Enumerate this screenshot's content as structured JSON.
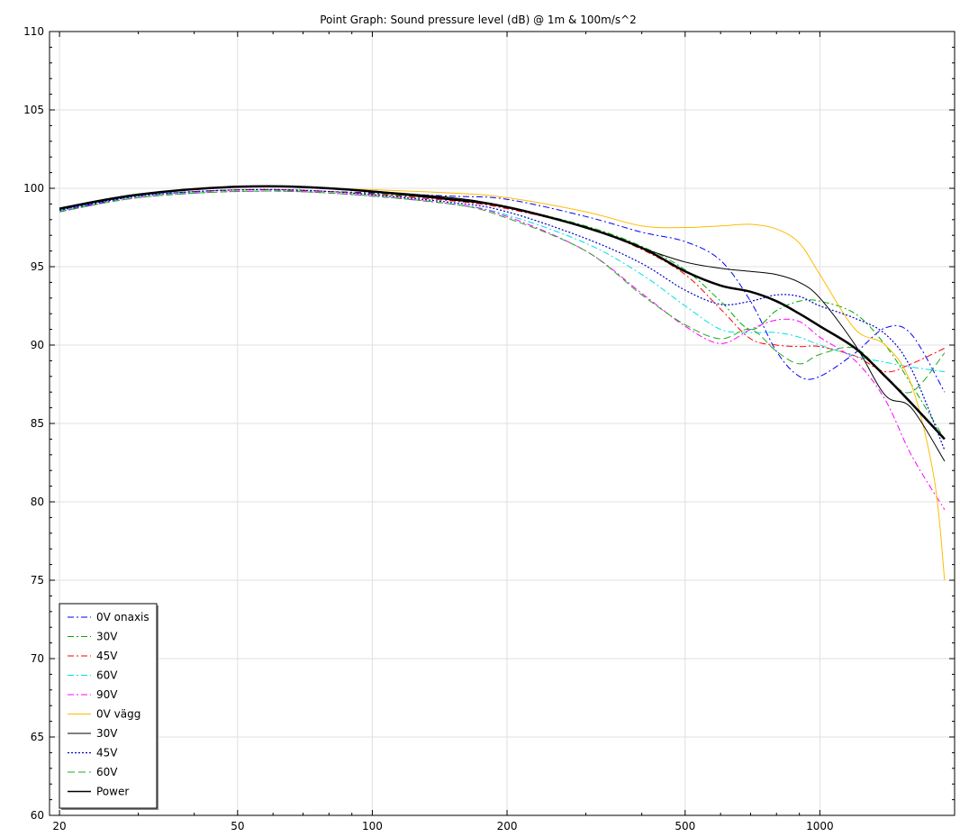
{
  "chart_data": {
    "type": "line",
    "title": "Point Graph: Sound pressure level (dB) @ 1m & 100m/s^2",
    "xlabel": "",
    "ylabel": "",
    "x_scale": "log",
    "xlim": [
      19,
      2000
    ],
    "ylim": [
      60,
      110
    ],
    "grid": true,
    "legend_position": "bottom-left",
    "x_ticks": [
      {
        "value": 20,
        "label": "20"
      },
      {
        "value": 50,
        "label": "50"
      },
      {
        "value": 100,
        "label": "100"
      },
      {
        "value": 200,
        "label": "200"
      },
      {
        "value": 500,
        "label": "500"
      },
      {
        "value": 1000,
        "label": "1000"
      }
    ],
    "y_ticks": [
      {
        "value": 60,
        "label": "60"
      },
      {
        "value": 65,
        "label": "65"
      },
      {
        "value": 70,
        "label": "70"
      },
      {
        "value": 75,
        "label": "75"
      },
      {
        "value": 80,
        "label": "80"
      },
      {
        "value": 85,
        "label": "85"
      },
      {
        "value": 90,
        "label": "90"
      },
      {
        "value": 95,
        "label": "95"
      },
      {
        "value": 100,
        "label": "100"
      },
      {
        "value": 105,
        "label": "105"
      },
      {
        "value": 110,
        "label": "110"
      }
    ],
    "series": [
      {
        "name": "0V onaxis",
        "color": "#0000ff",
        "dash": "dashdot",
        "width": 1,
        "x": [
          20,
          30,
          50,
          80,
          150,
          200,
          300,
          400,
          500,
          600,
          700,
          800,
          900,
          1000,
          1200,
          1400,
          1600,
          1900
        ],
        "y": [
          98.5,
          99.5,
          99.9,
          99.8,
          99.5,
          99.3,
          98.2,
          97.2,
          96.6,
          95.4,
          92.8,
          89.6,
          88.0,
          88.0,
          89.5,
          91.1,
          90.7,
          87.0
        ]
      },
      {
        "name": "30V",
        "color": "#00aa00",
        "dash": "dashdot",
        "width": 1,
        "x": [
          20,
          30,
          50,
          80,
          150,
          200,
          300,
          400,
          500,
          600,
          700,
          800,
          900,
          1000,
          1200,
          1400,
          1600,
          1900
        ],
        "y": [
          98.6,
          99.5,
          99.9,
          99.8,
          99.3,
          98.8,
          97.6,
          96.3,
          94.8,
          92.8,
          91.0,
          92.2,
          92.8,
          92.8,
          92.0,
          90.0,
          87.5,
          84.0
        ]
      },
      {
        "name": "45V",
        "color": "#ff0000",
        "dash": "dashdot",
        "width": 1,
        "x": [
          20,
          30,
          50,
          80,
          150,
          200,
          300,
          400,
          500,
          600,
          700,
          800,
          900,
          1000,
          1200,
          1400,
          1600,
          1900
        ],
        "y": [
          98.6,
          99.5,
          99.9,
          99.8,
          99.2,
          98.7,
          97.5,
          96.1,
          94.5,
          92.3,
          90.4,
          90.0,
          89.9,
          89.9,
          89.3,
          88.3,
          88.8,
          89.8
        ]
      },
      {
        "name": "60V",
        "color": "#00e0e0",
        "dash": "dashdot",
        "width": 1,
        "x": [
          20,
          30,
          50,
          80,
          150,
          200,
          300,
          400,
          500,
          600,
          700,
          800,
          900,
          1000,
          1200,
          1400,
          1600,
          1900
        ],
        "y": [
          98.6,
          99.5,
          99.8,
          99.7,
          99.0,
          98.3,
          96.5,
          94.5,
          92.5,
          91.0,
          90.8,
          90.8,
          90.5,
          90.0,
          89.3,
          88.9,
          88.6,
          88.3
        ]
      },
      {
        "name": "90V",
        "color": "#ff00ff",
        "dash": "dashdot",
        "width": 1,
        "x": [
          20,
          30,
          50,
          80,
          150,
          200,
          300,
          400,
          500,
          600,
          700,
          800,
          900,
          1000,
          1200,
          1400,
          1600,
          1900
        ],
        "y": [
          98.5,
          99.4,
          99.8,
          99.7,
          99.0,
          98.2,
          96.0,
          93.3,
          91.2,
          90.1,
          91.0,
          91.6,
          91.5,
          90.5,
          89.0,
          86.5,
          83.0,
          79.5
        ]
      },
      {
        "name": "0V vägg",
        "color": "#ffbb00",
        "dash": "solid",
        "width": 1,
        "x": [
          20,
          30,
          50,
          80,
          150,
          200,
          300,
          400,
          500,
          600,
          700,
          800,
          900,
          1000,
          1200,
          1400,
          1600,
          1800,
          1900
        ],
        "y": [
          98.7,
          99.6,
          100.1,
          100.0,
          99.7,
          99.4,
          98.5,
          97.6,
          97.5,
          97.6,
          97.7,
          97.4,
          96.5,
          94.5,
          91.0,
          90.0,
          87.5,
          81.5,
          75.0
        ]
      },
      {
        "name": "30V",
        "color": "#000000",
        "dash": "solid",
        "width": 1,
        "x": [
          20,
          30,
          50,
          80,
          150,
          200,
          300,
          400,
          500,
          600,
          700,
          800,
          900,
          1000,
          1200,
          1400,
          1600,
          1900
        ],
        "y": [
          98.7,
          99.6,
          100.1,
          100.0,
          99.4,
          98.8,
          97.5,
          96.2,
          95.3,
          94.9,
          94.7,
          94.5,
          94.0,
          93.0,
          90.0,
          86.8,
          86.0,
          82.6
        ]
      },
      {
        "name": "45V",
        "color": "#0000cc",
        "dash": "dotted",
        "width": 1.2,
        "x": [
          20,
          30,
          50,
          80,
          150,
          200,
          300,
          400,
          500,
          600,
          700,
          800,
          900,
          1000,
          1200,
          1400,
          1600,
          1900
        ],
        "y": [
          98.6,
          99.5,
          99.9,
          99.8,
          99.1,
          98.5,
          96.8,
          95.2,
          93.5,
          92.6,
          92.8,
          93.2,
          93.1,
          92.5,
          91.7,
          90.7,
          88.5,
          83.3
        ]
      },
      {
        "name": "60V",
        "color": "#22aa22",
        "dash": "dashed",
        "width": 1,
        "x": [
          20,
          30,
          50,
          80,
          150,
          200,
          300,
          400,
          500,
          600,
          700,
          800,
          900,
          1000,
          1200,
          1400,
          1600,
          1900
        ],
        "y": [
          98.5,
          99.4,
          99.8,
          99.7,
          99.0,
          98.1,
          96.0,
          93.2,
          91.3,
          90.4,
          91.0,
          89.6,
          88.8,
          89.4,
          89.8,
          88.0,
          87.0,
          89.5
        ]
      },
      {
        "name": "Power",
        "color": "#000000",
        "dash": "solid",
        "width": 2.5,
        "x": [
          20,
          30,
          50,
          80,
          150,
          200,
          300,
          400,
          500,
          600,
          700,
          800,
          900,
          1000,
          1200,
          1400,
          1600,
          1900
        ],
        "y": [
          98.7,
          99.6,
          100.1,
          100.0,
          99.3,
          98.8,
          97.5,
          96.2,
          94.7,
          93.8,
          93.4,
          92.8,
          92.0,
          91.2,
          89.8,
          88.0,
          86.3,
          84.0
        ]
      }
    ]
  }
}
